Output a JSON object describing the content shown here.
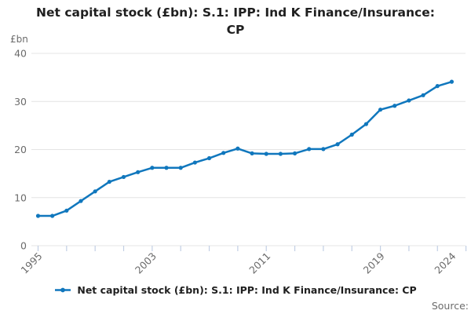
{
  "page": {
    "title_line1": "Net capital stock (£bn): S.1: IPP: Ind K Finance/Insurance:",
    "title_line2": "CP",
    "source_label": "Source:"
  },
  "legend": {
    "marker_icon": "line-with-dot-marker",
    "label": "Net capital stock (£bn): S.1: IPP: Ind K Finance/Insurance: CP"
  },
  "chart_data": {
    "type": "line",
    "title": "Net capital stock (£bn): S.1: IPP: Ind K Finance/Insurance: CP",
    "unit_label": "£bn",
    "series_name": "Net capital stock (£bn): S.1: IPP: Ind K Finance/Insurance: CP",
    "x": [
      1995,
      1996,
      1997,
      1998,
      1999,
      2000,
      2001,
      2002,
      2003,
      2004,
      2005,
      2006,
      2007,
      2008,
      2009,
      2010,
      2011,
      2012,
      2013,
      2014,
      2015,
      2016,
      2017,
      2018,
      2019,
      2020,
      2021,
      2022,
      2023,
      2024
    ],
    "values": [
      6.2,
      6.2,
      7.3,
      9.3,
      11.3,
      13.3,
      14.3,
      15.3,
      16.2,
      16.2,
      16.2,
      17.3,
      18.2,
      19.3,
      20.2,
      19.2,
      19.1,
      19.1,
      19.2,
      20.1,
      20.1,
      21.1,
      23.1,
      25.3,
      28.3,
      29.1,
      30.2,
      31.3,
      33.2,
      34.1
    ],
    "xlim": [
      1995,
      2025
    ],
    "ylim": [
      0,
      40
    ],
    "y_ticks": [
      0,
      10,
      20,
      30,
      40
    ],
    "x_tick_interval_years": 2,
    "x_label_years": [
      1995,
      2003,
      2011,
      2019,
      2024
    ],
    "grid": "horizontal-only",
    "legend_position": "bottom",
    "marker": "dot",
    "colors": {
      "line": "#1077bd",
      "grid": "#e4e4e4",
      "axis_tick": "#c2cfe4",
      "axis_text": "#6b6b6b",
      "title_text": "#1f1f1f"
    }
  }
}
